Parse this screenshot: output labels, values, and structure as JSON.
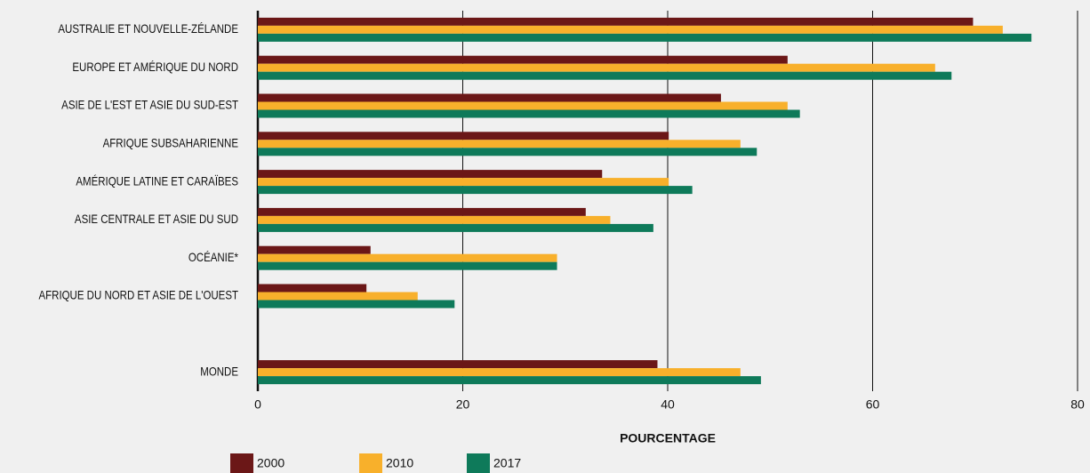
{
  "chart_data": {
    "type": "bar",
    "orientation": "horizontal",
    "categories": [
      "AUSTRALIE ET NOUVELLE-ZÉLANDE",
      "EUROPE ET AMÉRIQUE DU NORD",
      "ASIE DE L'EST ET ASIE DU SUD-EST",
      "AFRIQUE SUBSAHARIENNE",
      "AMÉRIQUE LATINE ET CARAÏBES",
      "ASIE CENTRALE ET ASIE DU SUD",
      "OCÉANIE*",
      "AFRIQUE DU NORD ET ASIE DE L'OUEST",
      null,
      "MONDE"
    ],
    "series": [
      {
        "name": "2000",
        "color": "#6b1717",
        "values": [
          69.8,
          51.7,
          45.2,
          40.1,
          33.6,
          32.0,
          11.0,
          10.6,
          null,
          39.0
        ]
      },
      {
        "name": "2010",
        "color": "#f8b02b",
        "values": [
          72.7,
          66.1,
          51.7,
          47.1,
          40.1,
          34.4,
          29.2,
          15.6,
          null,
          47.1
        ]
      },
      {
        "name": "2017",
        "color": "#0e7a5a",
        "values": [
          75.5,
          67.7,
          52.9,
          48.7,
          42.4,
          38.6,
          29.2,
          19.2,
          null,
          49.1
        ]
      }
    ],
    "xlabel": "POURCENTAGE",
    "xlim": [
      0,
      80
    ],
    "xticks": [
      0,
      20,
      40,
      60,
      80
    ],
    "grid": true
  }
}
